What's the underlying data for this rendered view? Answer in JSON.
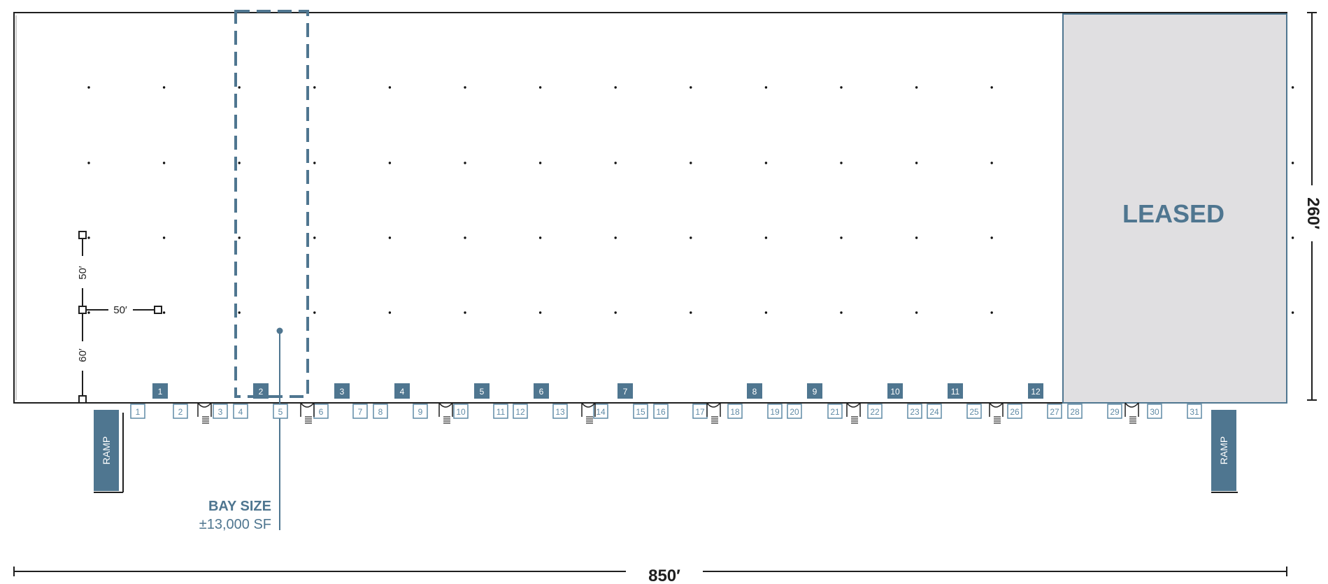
{
  "colors": {
    "accent": "#4f7690",
    "leased_fill": "#e0dfe1",
    "line": "#1f1f1f",
    "door_label": "#5f8aa5"
  },
  "leased": {
    "label": "LEASED"
  },
  "bay": {
    "title": "BAY SIZE",
    "size": "±13,000 SF"
  },
  "ramps": [
    {
      "label": "RAMP"
    },
    {
      "label": "RAMP"
    }
  ],
  "dimensions": {
    "width": "850′",
    "depth": "260′",
    "column_spacing_v": "50′",
    "column_spacing_h": "50′",
    "speed_bay": "60′"
  },
  "drive_in_doors": [
    "1",
    "2",
    "3",
    "4",
    "5",
    "6",
    "7",
    "8",
    "9",
    "10",
    "11",
    "12"
  ],
  "dock_doors": [
    "1",
    "2",
    "3",
    "4",
    "5",
    "6",
    "7",
    "8",
    "9",
    "10",
    "11",
    "12",
    "13",
    "14",
    "15",
    "16",
    "17",
    "18",
    "19",
    "20",
    "21",
    "22",
    "23",
    "24",
    "25",
    "26",
    "27",
    "28",
    "29",
    "30",
    "31"
  ]
}
